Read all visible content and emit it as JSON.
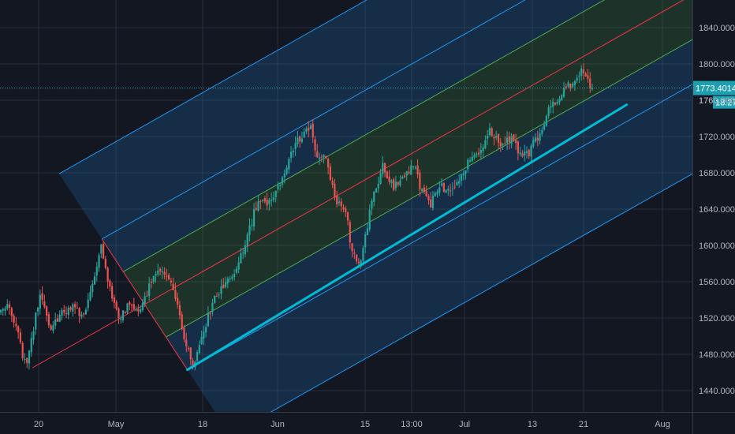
{
  "chart_data": {
    "type": "candlestick",
    "y_axis": {
      "ticks": [
        "1440.0000",
        "1480.0000",
        "1520.0000",
        "1560.0000",
        "1600.0000",
        "1640.0000",
        "1680.0000",
        "1720.0000",
        "1760.0000",
        "1800.0000",
        "1840.0000"
      ],
      "range": [
        1430,
        1870
      ],
      "position": "right"
    },
    "x_axis": {
      "ticks": [
        "20",
        "May",
        "18",
        "Jun",
        "15",
        "13:00",
        "Jul",
        "13",
        "21",
        "Aug"
      ]
    },
    "last_price": {
      "value": 1773.4014,
      "label": "1773.4014",
      "countdown": "18:27",
      "partial_label": "176"
    },
    "colors": {
      "background": "#131722",
      "up": "#26a69a",
      "down": "#ef5350",
      "median_line": "#f23645",
      "inner_channel": "#4caf50",
      "outer_channel": "#2196f3",
      "trendline": "#00bcd4",
      "last_price_line": "#1fb8c9"
    },
    "pitchfork": {
      "pivot_a": {
        "date": "Apr 15",
        "price": 1465
      },
      "pivot_b": {
        "date": "Apr 29",
        "price": 1607
      },
      "pivot_c": {
        "date": "May 15",
        "price": 1463
      }
    },
    "trendline": {
      "start": {
        "date": "May 15",
        "price": 1463
      },
      "end": {
        "date": "Jul 27",
        "price": 1755
      }
    },
    "candles": {
      "anchors": [
        [
          0,
          1530
        ],
        [
          3,
          1538
        ],
        [
          7,
          1510
        ],
        [
          10,
          1480
        ],
        [
          12,
          1470
        ],
        [
          18,
          1548
        ],
        [
          23,
          1505
        ],
        [
          27,
          1525
        ],
        [
          34,
          1532
        ],
        [
          38,
          1520
        ],
        [
          44,
          1572
        ],
        [
          46,
          1605
        ],
        [
          49,
          1560
        ],
        [
          54,
          1518
        ],
        [
          59,
          1535
        ],
        [
          63,
          1528
        ],
        [
          70,
          1565
        ],
        [
          74,
          1572
        ],
        [
          79,
          1550
        ],
        [
          84,
          1500
        ],
        [
          88,
          1470
        ],
        [
          90,
          1480
        ],
        [
          93,
          1505
        ],
        [
          98,
          1545
        ],
        [
          103,
          1555
        ],
        [
          107,
          1570
        ],
        [
          112,
          1602
        ],
        [
          118,
          1652
        ],
        [
          123,
          1648
        ],
        [
          128,
          1668
        ],
        [
          133,
          1705
        ],
        [
          139,
          1725
        ],
        [
          142,
          1728
        ],
        [
          145,
          1695
        ],
        [
          149,
          1700
        ],
        [
          153,
          1650
        ],
        [
          158,
          1640
        ],
        [
          161,
          1590
        ],
        [
          164,
          1580
        ],
        [
          166,
          1595
        ],
        [
          170,
          1650
        ],
        [
          175,
          1688
        ],
        [
          180,
          1665
        ],
        [
          185,
          1678
        ],
        [
          189,
          1690
        ],
        [
          193,
          1658
        ],
        [
          197,
          1645
        ],
        [
          201,
          1665
        ],
        [
          205,
          1658
        ],
        [
          210,
          1672
        ],
        [
          215,
          1695
        ],
        [
          219,
          1705
        ],
        [
          224,
          1725
        ],
        [
          229,
          1712
        ],
        [
          234,
          1718
        ],
        [
          238,
          1698
        ],
        [
          242,
          1702
        ],
        [
          247,
          1725
        ],
        [
          251,
          1750
        ],
        [
          255,
          1760
        ],
        [
          260,
          1775
        ],
        [
          263,
          1782
        ],
        [
          266,
          1795
        ],
        [
          269,
          1780
        ],
        [
          271,
          1773
        ]
      ]
    }
  }
}
